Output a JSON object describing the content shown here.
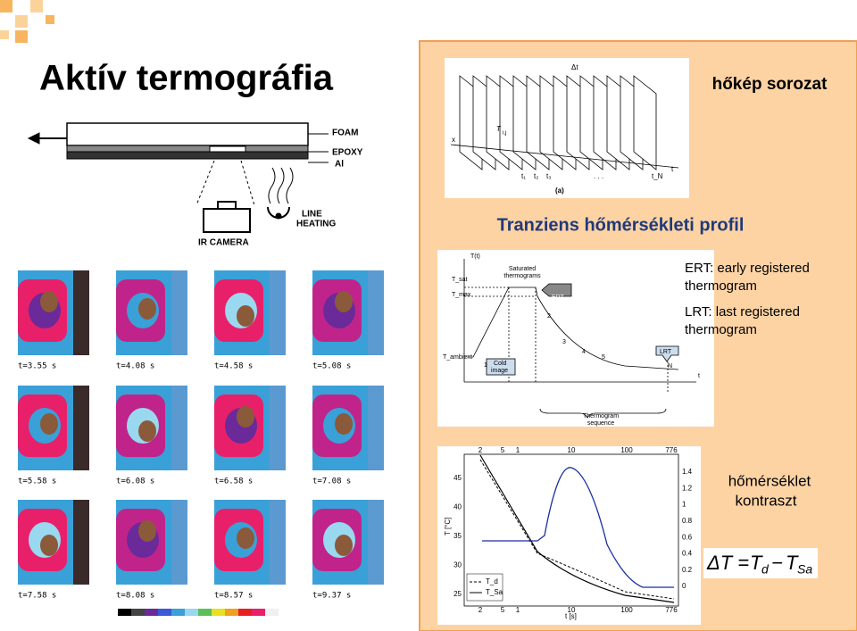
{
  "title": "Aktív termográfia",
  "setup_figure": {
    "foam": "FOAM",
    "epoxy": "EPOXY",
    "al": "Al",
    "heating": [
      "LINE",
      "HEATING"
    ],
    "camera": "IR CAMERA"
  },
  "thermograms": {
    "times": [
      "t=3.55 s",
      "t=4.08 s",
      "t=4.58 s",
      "t=5.08 s",
      "t=5.58 s",
      "t=6.08 s",
      "t=6.58 s",
      "t=7.08 s",
      "t=7.58 s",
      "t=8.08 s",
      "t=8.57 s",
      "t=9.37 s"
    ]
  },
  "sequence_figure": {
    "dt": "Δt",
    "x": "x",
    "t": "t",
    "point": "T",
    "point_sub": "i,j",
    "times": [
      "t₁",
      "t₂",
      "t₃",
      ". . .",
      "t_N"
    ],
    "caption": "(a)"
  },
  "sequence_label": "hőkép sorozat",
  "profile_title": "Tranziens hőmérsékleti profil",
  "profile_figure": {
    "y": "T(t)",
    "tsat": "T_sat",
    "tmax": "T_max",
    "tambient": "T_ambient",
    "saturated": [
      "Saturated",
      "thermograms"
    ],
    "ert": "ERT",
    "lrt": "LRT",
    "cold": [
      "Cold",
      "image"
    ],
    "sequence": [
      "Thermogram",
      "sequence"
    ],
    "steps": [
      "1",
      "2",
      "3",
      "4",
      "5"
    ],
    "n": "N",
    "t": "t"
  },
  "notes": {
    "ert": [
      "ERT: early registered",
      "thermogram"
    ],
    "lrt": [
      "LRT: last registered",
      "thermogram"
    ]
  },
  "contrast_plot": {
    "x_ticks": [
      "2",
      "5",
      "1",
      "10",
      "100",
      "776"
    ],
    "left_ticks": [
      "45",
      "40",
      "35",
      "30",
      "25"
    ],
    "right_ticks": [
      "1.4",
      "1.2",
      "1",
      "0.8",
      "0.6",
      "0.4",
      "0.2",
      "0"
    ],
    "ylabel": "T [°C]",
    "xlabel": "t [s]",
    "legend": [
      "T_d",
      "T_Sa"
    ]
  },
  "contrast_label": [
    "hőmérséklet",
    "kontraszt"
  ],
  "formula": {
    "lhs": "ΔT =",
    "td": "T",
    "td_sub": "d",
    "minus": "−",
    "tsa": "T",
    "tsa_sub": "Sa"
  }
}
